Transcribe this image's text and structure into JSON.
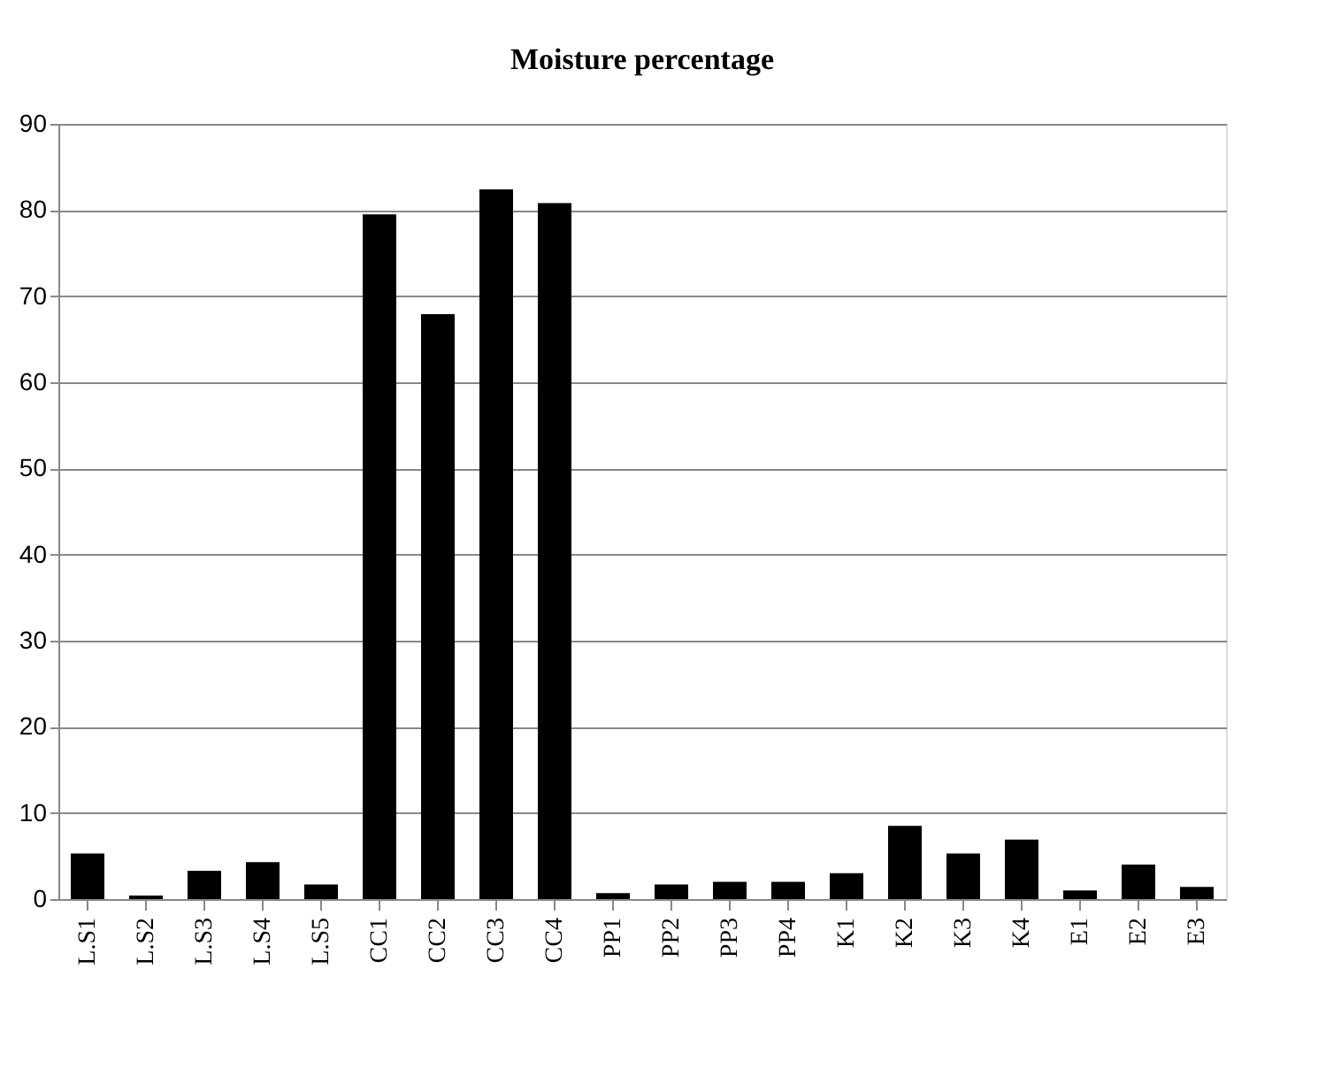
{
  "chart_data": {
    "type": "bar",
    "title": "Moisture percentage",
    "categories": [
      "L.S1",
      "L.S2",
      "L.S3",
      "L.S4",
      "L.S5",
      "CC1",
      "CC2",
      "CC3",
      "CC4",
      "PP1",
      "PP2",
      "PP3",
      "PP4",
      "K1",
      "K2",
      "K3",
      "K4",
      "E1",
      "E2",
      "E3"
    ],
    "values": [
      5.3,
      0.4,
      3.3,
      4.3,
      1.7,
      79.5,
      67.9,
      82.4,
      80.8,
      0.7,
      1.7,
      2,
      2,
      3,
      8.5,
      5.3,
      6.9,
      1,
      4,
      1.4
    ],
    "color": "#000000",
    "ylim": [
      0,
      90
    ],
    "yticks": [
      0,
      10,
      20,
      30,
      40,
      50,
      60,
      70,
      80,
      90
    ],
    "grid": "y"
  }
}
